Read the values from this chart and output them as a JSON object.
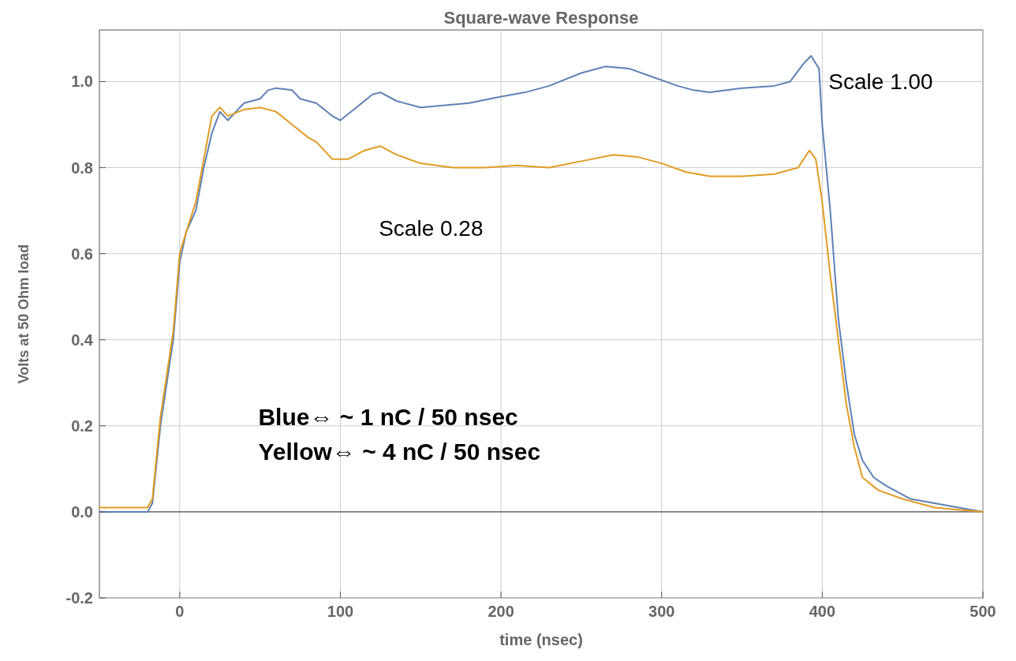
{
  "chart_data": {
    "type": "line",
    "title": "Square-wave Response",
    "xlabel": "time  (nsec)",
    "ylabel": "Volts  at  50  Ohm  load",
    "xlim": [
      -50,
      500
    ],
    "ylim": [
      -0.2,
      1.12
    ],
    "xticks": [
      0,
      100,
      200,
      300,
      400,
      500
    ],
    "yticks": [
      -0.2,
      {
        "value": 0,
        "label": "0.0"
      },
      0.2,
      0.4,
      0.6,
      0.8,
      {
        "value": 1,
        "label": "1.0"
      }
    ],
    "grid": true,
    "ref_lines": [
      {
        "axis": "y",
        "value": 0,
        "color": "#555555"
      }
    ],
    "annotations": [
      "Scale 1.00",
      "Scale 0.28",
      "Blue⇔ ~ 1 nC / 50 nsec",
      "Yellow⇔ ~ 4 nC / 50 nsec"
    ],
    "series": [
      {
        "color": "#5e81b5",
        "x": [
          -50,
          -20,
          -17,
          -12,
          -8,
          -4,
          0,
          4,
          10,
          15,
          20,
          25,
          30,
          35,
          40,
          50,
          55,
          60,
          70,
          75,
          85,
          95,
          100,
          110,
          120,
          125,
          135,
          150,
          165,
          180,
          200,
          215,
          230,
          250,
          265,
          280,
          295,
          310,
          320,
          330,
          350,
          370,
          380,
          388,
          393,
          398,
          400,
          405,
          410,
          415,
          420,
          425,
          432,
          440,
          455,
          470,
          485,
          500
        ],
        "values": [
          0.0,
          0.0,
          0.02,
          0.2,
          0.3,
          0.4,
          0.58,
          0.65,
          0.7,
          0.8,
          0.88,
          0.93,
          0.91,
          0.93,
          0.95,
          0.96,
          0.98,
          0.985,
          0.98,
          0.96,
          0.95,
          0.92,
          0.91,
          0.94,
          0.97,
          0.975,
          0.955,
          0.94,
          0.945,
          0.95,
          0.965,
          0.975,
          0.99,
          1.02,
          1.035,
          1.03,
          1.01,
          0.99,
          0.98,
          0.975,
          0.985,
          0.99,
          1.0,
          1.04,
          1.06,
          1.03,
          0.9,
          0.7,
          0.45,
          0.3,
          0.18,
          0.12,
          0.08,
          0.06,
          0.03,
          0.02,
          0.01,
          0.0
        ]
      },
      {
        "color": "#e19c24",
        "x": [
          -50,
          -20,
          -17,
          -12,
          -8,
          -4,
          0,
          4,
          10,
          15,
          20,
          25,
          30,
          40,
          50,
          60,
          70,
          80,
          85,
          95,
          105,
          115,
          125,
          135,
          150,
          170,
          190,
          210,
          230,
          250,
          270,
          285,
          300,
          315,
          330,
          350,
          370,
          385,
          392,
          396,
          400,
          405,
          410,
          415,
          420,
          425,
          435,
          450,
          470,
          500
        ],
        "values": [
          0.01,
          0.01,
          0.03,
          0.22,
          0.32,
          0.42,
          0.6,
          0.65,
          0.72,
          0.82,
          0.92,
          0.94,
          0.92,
          0.935,
          0.94,
          0.93,
          0.9,
          0.87,
          0.86,
          0.82,
          0.82,
          0.84,
          0.85,
          0.83,
          0.81,
          0.8,
          0.8,
          0.805,
          0.8,
          0.815,
          0.83,
          0.825,
          0.81,
          0.79,
          0.78,
          0.78,
          0.785,
          0.8,
          0.84,
          0.82,
          0.72,
          0.55,
          0.4,
          0.25,
          0.15,
          0.08,
          0.05,
          0.03,
          0.01,
          0.0
        ]
      }
    ]
  }
}
